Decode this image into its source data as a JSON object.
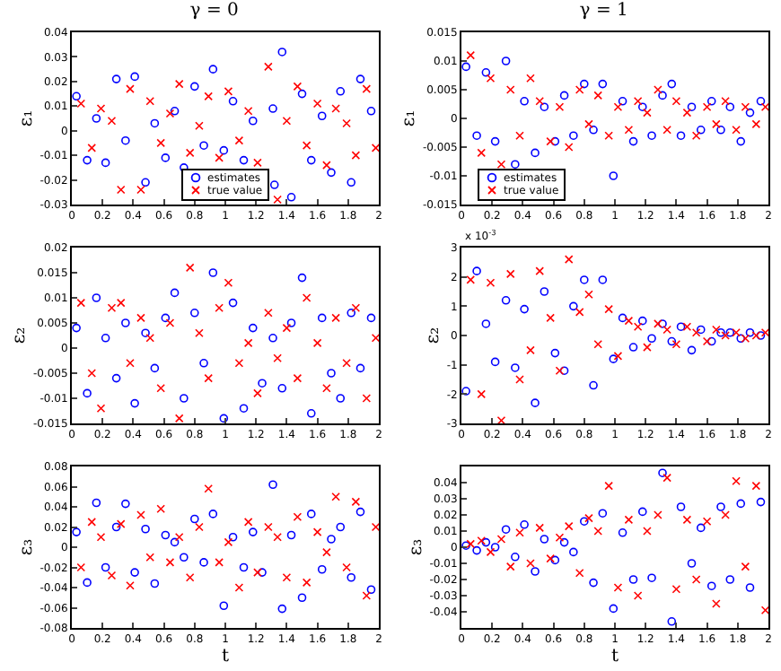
{
  "chart_data": [
    {
      "type": "scatter",
      "title": "γ = 0",
      "ylabel": "ε₁",
      "xlim": [
        0,
        2
      ],
      "xticks": [
        0,
        0.2,
        0.4,
        0.6,
        0.8,
        1,
        1.2,
        1.4,
        1.6,
        1.8,
        2
      ],
      "ylim": [
        -0.03,
        0.04
      ],
      "yticks": [
        -0.03,
        -0.02,
        -0.01,
        0,
        0.01,
        0.02,
        0.03,
        0.04
      ],
      "grid": false,
      "legend": "bottom",
      "series": [
        {
          "name": "estimates",
          "color": "#0000ff",
          "marker": "circle",
          "x": [
            0.03,
            0.1,
            0.16,
            0.22,
            0.29,
            0.35,
            0.41,
            0.48,
            0.54,
            0.61,
            0.67,
            0.73,
            0.8,
            0.86,
            0.92,
            0.99,
            1.05,
            1.12,
            1.18,
            1.32,
            1.31,
            1.37,
            1.43,
            1.5,
            1.56,
            1.63,
            1.69,
            1.75,
            1.82,
            1.88,
            1.95
          ],
          "values": [
            0.014,
            -0.012,
            0.005,
            -0.013,
            0.021,
            -0.004,
            0.022,
            -0.021,
            0.003,
            -0.011,
            0.008,
            -0.015,
            0.018,
            -0.006,
            0.025,
            -0.008,
            0.012,
            -0.012,
            0.004,
            -0.022,
            0.009,
            0.032,
            -0.027,
            0.015,
            -0.012,
            0.006,
            -0.017,
            0.016,
            -0.021,
            0.021,
            0.008
          ]
        },
        {
          "name": "true value",
          "color": "#ff0000",
          "marker": "cross",
          "x": [
            0.06,
            0.13,
            0.19,
            0.26,
            0.32,
            0.38,
            0.45,
            0.51,
            0.58,
            0.64,
            0.7,
            0.77,
            0.83,
            0.89,
            0.96,
            1.02,
            1.09,
            1.15,
            1.21,
            1.28,
            1.34,
            1.4,
            1.47,
            1.53,
            1.6,
            1.66,
            1.72,
            1.79,
            1.85,
            1.92,
            1.98
          ],
          "values": [
            0.011,
            -0.007,
            0.009,
            0.004,
            -0.024,
            0.017,
            -0.024,
            0.012,
            -0.005,
            0.007,
            0.019,
            -0.009,
            0.002,
            0.014,
            -0.011,
            0.016,
            -0.004,
            0.008,
            -0.013,
            0.026,
            -0.028,
            0.004,
            0.018,
            -0.006,
            0.011,
            -0.014,
            0.009,
            0.003,
            -0.01,
            0.017,
            -0.007
          ]
        }
      ]
    },
    {
      "type": "scatter",
      "title": "γ = 1",
      "ylabel": "ε₁",
      "xlim": [
        0,
        2
      ],
      "xticks": [
        0,
        0.2,
        0.4,
        0.6,
        0.8,
        1,
        1.2,
        1.4,
        1.6,
        1.8,
        2
      ],
      "ylim": [
        -0.015,
        0.015
      ],
      "yticks": [
        -0.015,
        -0.01,
        -0.005,
        0,
        0.005,
        0.01,
        0.015
      ],
      "grid": false,
      "legend": "bottom left",
      "series": [
        {
          "name": "estimates",
          "color": "#0000ff",
          "marker": "circle",
          "x": [
            0.03,
            0.1,
            0.16,
            0.22,
            0.29,
            0.35,
            0.41,
            0.48,
            0.54,
            0.61,
            0.67,
            0.73,
            0.8,
            0.86,
            0.92,
            0.99,
            1.05,
            1.12,
            1.18,
            1.24,
            1.31,
            1.37,
            1.43,
            1.5,
            1.56,
            1.63,
            1.69,
            1.75,
            1.82,
            1.88,
            1.95
          ],
          "values": [
            0.009,
            -0.003,
            0.008,
            -0.004,
            0.01,
            -0.008,
            0.003,
            -0.006,
            0.002,
            -0.004,
            0.004,
            -0.003,
            0.006,
            -0.002,
            0.006,
            -0.01,
            0.003,
            -0.004,
            0.002,
            -0.003,
            0.004,
            0.006,
            -0.003,
            0.002,
            -0.002,
            0.003,
            -0.002,
            0.002,
            -0.004,
            0.001,
            0.003
          ]
        },
        {
          "name": "true value",
          "color": "#ff0000",
          "marker": "cross",
          "x": [
            0.06,
            0.13,
            0.19,
            0.26,
            0.32,
            0.38,
            0.45,
            0.51,
            0.58,
            0.64,
            0.7,
            0.77,
            0.83,
            0.89,
            0.96,
            1.02,
            1.09,
            1.15,
            1.21,
            1.28,
            1.34,
            1.4,
            1.47,
            1.53,
            1.6,
            1.66,
            1.72,
            1.79,
            1.85,
            1.92,
            1.98
          ],
          "values": [
            0.011,
            -0.006,
            0.007,
            -0.008,
            0.005,
            -0.003,
            0.007,
            0.003,
            -0.004,
            0.002,
            -0.005,
            0.005,
            -0.001,
            0.004,
            -0.003,
            0.002,
            -0.002,
            0.003,
            0.001,
            0.005,
            -0.002,
            0.003,
            0.001,
            -0.003,
            0.002,
            -0.001,
            0.003,
            -0.002,
            0.002,
            -0.001,
            0.002
          ]
        }
      ]
    },
    {
      "type": "scatter",
      "ylabel": "ε₂",
      "xlim": [
        0,
        2
      ],
      "xticks": [
        0,
        0.2,
        0.4,
        0.6,
        0.8,
        1,
        1.2,
        1.4,
        1.6,
        1.8,
        2
      ],
      "ylim": [
        -0.015,
        0.02
      ],
      "yticks": [
        -0.015,
        -0.01,
        -0.005,
        0,
        0.005,
        0.01,
        0.015,
        0.02
      ],
      "grid": false,
      "legend": false,
      "series": [
        {
          "color": "#0000ff",
          "marker": "circle",
          "x": [
            0.03,
            0.1,
            0.16,
            0.22,
            0.29,
            0.35,
            0.41,
            0.48,
            0.54,
            0.61,
            0.67,
            0.73,
            0.8,
            0.86,
            0.92,
            0.99,
            1.05,
            1.12,
            1.18,
            1.24,
            1.31,
            1.37,
            1.43,
            1.5,
            1.56,
            1.63,
            1.69,
            1.75,
            1.82,
            1.88,
            1.95
          ],
          "values": [
            0.004,
            -0.009,
            0.01,
            0.002,
            -0.006,
            0.005,
            -0.011,
            0.003,
            -0.004,
            0.006,
            0.011,
            -0.01,
            0.007,
            -0.003,
            0.015,
            -0.014,
            0.009,
            -0.012,
            0.004,
            -0.007,
            0.002,
            -0.008,
            0.005,
            0.014,
            -0.013,
            0.006,
            -0.005,
            -0.01,
            0.007,
            -0.004,
            0.006
          ]
        },
        {
          "color": "#ff0000",
          "marker": "cross",
          "x": [
            0.06,
            0.13,
            0.19,
            0.26,
            0.32,
            0.38,
            0.45,
            0.51,
            0.58,
            0.64,
            0.7,
            0.77,
            0.83,
            0.89,
            0.96,
            1.02,
            1.09,
            1.15,
            1.21,
            1.28,
            1.34,
            1.4,
            1.47,
            1.53,
            1.6,
            1.66,
            1.72,
            1.79,
            1.85,
            1.92,
            1.98
          ],
          "values": [
            0.009,
            -0.005,
            -0.012,
            0.008,
            0.009,
            -0.003,
            0.006,
            0.002,
            -0.008,
            0.005,
            -0.014,
            0.016,
            0.003,
            -0.006,
            0.008,
            0.013,
            -0.003,
            0.001,
            -0.009,
            0.007,
            -0.002,
            0.004,
            -0.006,
            0.01,
            0.001,
            -0.008,
            0.006,
            -0.003,
            0.008,
            -0.01,
            0.002
          ]
        }
      ]
    },
    {
      "type": "scatter",
      "ylabel": "ε₂",
      "annotations": [
        "x 10$^{-3}$"
      ],
      "xlim": [
        0,
        2
      ],
      "xticks": [
        0,
        0.2,
        0.4,
        0.6,
        0.8,
        1,
        1.2,
        1.4,
        1.6,
        1.8,
        2
      ],
      "ylim": [
        -3,
        3
      ],
      "yticks": [
        -3,
        -2,
        -1,
        0,
        1,
        2,
        3
      ],
      "grid": false,
      "legend": false,
      "series": [
        {
          "color": "#0000ff",
          "marker": "circle",
          "x": [
            0.03,
            0.1,
            0.16,
            0.22,
            0.29,
            0.35,
            0.41,
            0.48,
            0.54,
            0.61,
            0.67,
            0.73,
            0.8,
            0.86,
            0.92,
            0.99,
            1.05,
            1.12,
            1.18,
            1.24,
            1.31,
            1.37,
            1.43,
            1.5,
            1.56,
            1.63,
            1.69,
            1.75,
            1.82,
            1.88,
            1.95
          ],
          "values": [
            -1.9,
            2.2,
            0.4,
            -0.9,
            1.2,
            -1.1,
            0.9,
            -2.3,
            1.5,
            -0.6,
            -1.2,
            1.0,
            1.9,
            -1.7,
            1.9,
            -0.8,
            0.6,
            -0.4,
            0.5,
            -0.1,
            0.4,
            -0.2,
            0.3,
            -0.5,
            0.2,
            -0.2,
            0.1,
            0.1,
            -0.1,
            0.1,
            0.0
          ]
        },
        {
          "color": "#ff0000",
          "marker": "cross",
          "x": [
            0.06,
            0.13,
            0.19,
            0.26,
            0.32,
            0.38,
            0.45,
            0.51,
            0.58,
            0.64,
            0.7,
            0.77,
            0.83,
            0.89,
            0.96,
            1.02,
            1.09,
            1.15,
            1.21,
            1.28,
            1.34,
            1.4,
            1.47,
            1.53,
            1.6,
            1.66,
            1.72,
            1.79,
            1.85,
            1.92,
            1.98
          ],
          "values": [
            1.9,
            -2.0,
            1.8,
            -2.9,
            2.1,
            -1.5,
            -0.5,
            2.2,
            0.6,
            -1.2,
            2.6,
            0.8,
            1.4,
            -0.3,
            0.9,
            -0.7,
            0.5,
            0.3,
            -0.4,
            0.4,
            0.2,
            -0.3,
            0.3,
            0.1,
            -0.2,
            0.2,
            0.0,
            0.1,
            -0.1,
            0.0,
            0.1
          ]
        }
      ]
    },
    {
      "type": "scatter",
      "xlabel": "t",
      "ylabel": "ε₃",
      "xlim": [
        0,
        2
      ],
      "xticks": [
        0,
        0.2,
        0.4,
        0.6,
        0.8,
        1,
        1.2,
        1.4,
        1.6,
        1.8,
        2
      ],
      "ylim": [
        -0.08,
        0.08
      ],
      "yticks": [
        -0.08,
        -0.06,
        -0.04,
        -0.02,
        0,
        0.02,
        0.04,
        0.06,
        0.08
      ],
      "grid": false,
      "legend": false,
      "series": [
        {
          "color": "#0000ff",
          "marker": "circle",
          "x": [
            0.03,
            0.1,
            0.16,
            0.22,
            0.29,
            0.35,
            0.41,
            0.48,
            0.54,
            0.61,
            0.67,
            0.73,
            0.8,
            0.86,
            0.92,
            0.99,
            1.05,
            1.12,
            1.18,
            1.24,
            1.31,
            1.37,
            1.43,
            1.5,
            1.56,
            1.63,
            1.69,
            1.75,
            1.82,
            1.88,
            1.95
          ],
          "values": [
            0.015,
            -0.035,
            0.044,
            -0.02,
            0.02,
            0.043,
            -0.025,
            0.018,
            -0.036,
            0.012,
            0.005,
            -0.01,
            0.028,
            -0.015,
            0.033,
            -0.058,
            0.01,
            -0.02,
            0.015,
            -0.025,
            0.062,
            -0.061,
            0.012,
            -0.05,
            0.033,
            -0.022,
            0.008,
            0.02,
            -0.03,
            0.035,
            -0.042
          ]
        },
        {
          "color": "#ff0000",
          "marker": "cross",
          "x": [
            0.06,
            0.13,
            0.19,
            0.26,
            0.32,
            0.38,
            0.45,
            0.51,
            0.58,
            0.64,
            0.7,
            0.77,
            0.83,
            0.89,
            0.96,
            1.02,
            1.09,
            1.15,
            1.21,
            1.28,
            1.34,
            1.4,
            1.47,
            1.53,
            1.6,
            1.66,
            1.72,
            1.79,
            1.85,
            1.92,
            1.98
          ],
          "values": [
            -0.02,
            0.025,
            0.01,
            -0.028,
            0.023,
            -0.038,
            0.032,
            -0.01,
            0.038,
            -0.015,
            0.01,
            -0.03,
            0.02,
            0.058,
            -0.015,
            0.005,
            -0.04,
            0.025,
            -0.025,
            0.02,
            0.01,
            -0.03,
            0.03,
            -0.035,
            0.015,
            -0.005,
            0.05,
            -0.02,
            0.045,
            -0.048,
            0.02
          ]
        }
      ]
    },
    {
      "type": "scatter",
      "xlabel": "t",
      "ylabel": "ε₃",
      "xlim": [
        0,
        2
      ],
      "xticks": [
        0,
        0.2,
        0.4,
        0.6,
        0.8,
        1,
        1.2,
        1.4,
        1.6,
        1.8,
        2
      ],
      "ylim": [
        -0.05,
        0.05
      ],
      "yticks": [
        -0.04,
        -0.03,
        -0.02,
        -0.01,
        0,
        0.01,
        0.02,
        0.03,
        0.04
      ],
      "grid": false,
      "legend": false,
      "series": [
        {
          "color": "#0000ff",
          "marker": "circle",
          "x": [
            0.03,
            0.1,
            0.16,
            0.22,
            0.29,
            0.35,
            0.41,
            0.48,
            0.54,
            0.61,
            0.67,
            0.73,
            0.8,
            0.86,
            0.92,
            0.99,
            1.05,
            1.12,
            1.18,
            1.24,
            1.31,
            1.37,
            1.43,
            1.5,
            1.56,
            1.63,
            1.69,
            1.75,
            1.82,
            1.88,
            1.95
          ],
          "values": [
            0.001,
            -0.002,
            0.003,
            0.0,
            0.011,
            -0.006,
            0.014,
            -0.015,
            0.005,
            -0.008,
            0.003,
            -0.003,
            0.016,
            -0.022,
            0.021,
            -0.038,
            0.009,
            -0.02,
            0.022,
            -0.019,
            0.046,
            -0.046,
            0.025,
            -0.01,
            0.012,
            -0.024,
            0.025,
            -0.02,
            0.027,
            -0.025,
            0.028
          ]
        },
        {
          "color": "#ff0000",
          "marker": "cross",
          "x": [
            0.06,
            0.13,
            0.19,
            0.26,
            0.32,
            0.38,
            0.45,
            0.51,
            0.58,
            0.64,
            0.7,
            0.77,
            0.83,
            0.89,
            0.96,
            1.02,
            1.09,
            1.15,
            1.21,
            1.28,
            1.34,
            1.4,
            1.47,
            1.53,
            1.6,
            1.66,
            1.72,
            1.79,
            1.85,
            1.92,
            1.98
          ],
          "values": [
            0.002,
            0.004,
            -0.003,
            0.005,
            -0.012,
            0.009,
            -0.01,
            0.012,
            -0.007,
            0.006,
            0.013,
            -0.016,
            0.018,
            0.01,
            0.038,
            -0.025,
            0.017,
            -0.03,
            0.01,
            0.02,
            0.043,
            -0.026,
            0.017,
            -0.02,
            0.016,
            -0.035,
            0.02,
            0.041,
            -0.012,
            0.038,
            -0.039
          ]
        }
      ]
    }
  ]
}
